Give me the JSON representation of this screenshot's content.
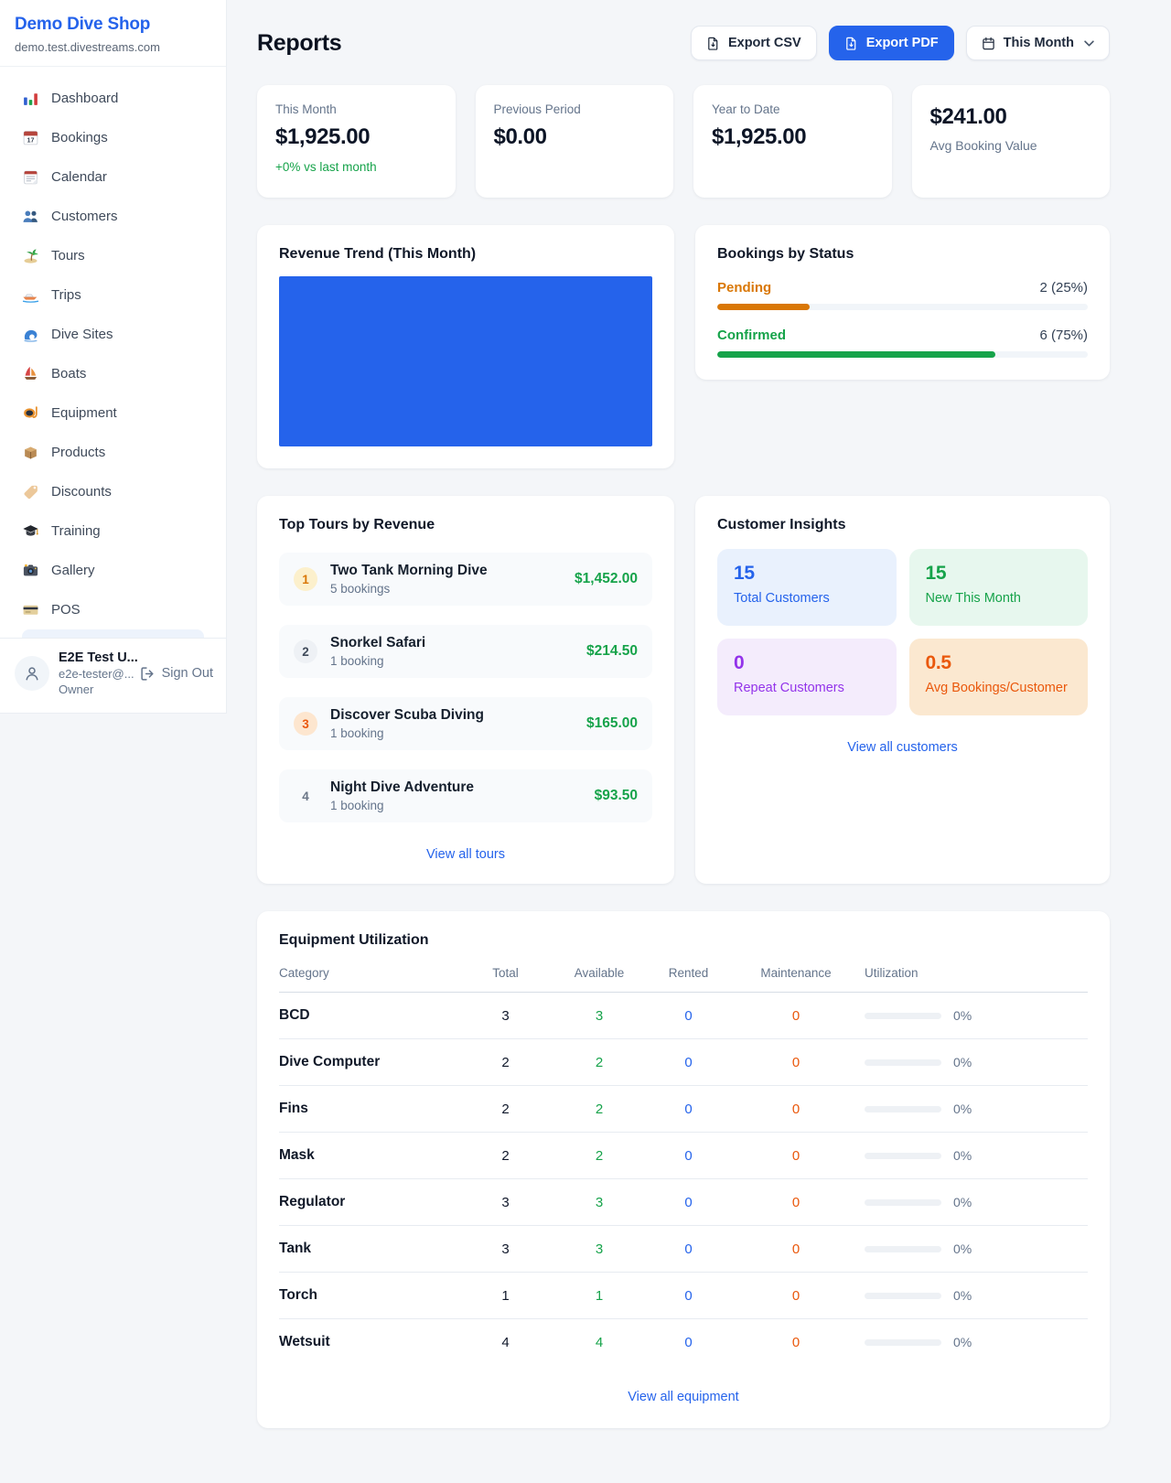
{
  "colors": {
    "accent_blue": "#2563eb",
    "green": "#16a34a",
    "pending_orange": "#d97706",
    "maintenance_orange": "#ea580c",
    "purple": "#9333ea",
    "page_background": "#f4f6f9"
  },
  "sidebar": {
    "shop_name": "Demo Dive Shop",
    "shop_domain": "demo.test.divestreams.com",
    "items": [
      {
        "icon": "bar-chart",
        "label": "Dashboard"
      },
      {
        "icon": "calendar-date",
        "label": "Bookings"
      },
      {
        "icon": "tear-off-calendar",
        "label": "Calendar"
      },
      {
        "icon": "people",
        "label": "Customers"
      },
      {
        "icon": "desert-island",
        "label": "Tours"
      },
      {
        "icon": "speedboat",
        "label": "Trips"
      },
      {
        "icon": "wave",
        "label": "Dive Sites"
      },
      {
        "icon": "sailboat",
        "label": "Boats"
      },
      {
        "icon": "diving-mask",
        "label": "Equipment"
      },
      {
        "icon": "package",
        "label": "Products"
      },
      {
        "icon": "tag",
        "label": "Discounts"
      },
      {
        "icon": "graduation-cap",
        "label": "Training"
      },
      {
        "icon": "camera-flash",
        "label": "Gallery"
      },
      {
        "icon": "credit-card",
        "label": "POS"
      }
    ],
    "user": {
      "name": "E2E Test U...",
      "email": "e2e-tester@...",
      "role": "Owner",
      "sign_out_label": "Sign Out"
    }
  },
  "header": {
    "title": "Reports",
    "export_csv_label": "Export CSV",
    "export_pdf_label": "Export PDF",
    "period_label": "This Month"
  },
  "stats": {
    "this_month": {
      "label": "This Month",
      "value": "$1,925.00",
      "delta": "+0% vs last month"
    },
    "previous_period": {
      "label": "Previous Period",
      "value": "$0.00"
    },
    "year_to_date": {
      "label": "Year to Date",
      "value": "$1,925.00"
    },
    "avg_booking": {
      "value": "$241.00",
      "label": "Avg Booking Value"
    }
  },
  "revenue_trend": {
    "title": "Revenue Trend (This Month)"
  },
  "bookings_by_status": {
    "title": "Bookings by Status",
    "rows": [
      {
        "label": "Pending",
        "count_text": "2 (25%)",
        "pct": 25
      },
      {
        "label": "Confirmed",
        "count_text": "6 (75%)",
        "pct": 75
      }
    ]
  },
  "top_tours": {
    "title": "Top Tours by Revenue",
    "rows": [
      {
        "rank": "1",
        "name": "Two Tank Morning Dive",
        "bookings": "5 bookings",
        "amount": "$1,452.00"
      },
      {
        "rank": "2",
        "name": "Snorkel Safari",
        "bookings": "1 booking",
        "amount": "$214.50"
      },
      {
        "rank": "3",
        "name": "Discover Scuba Diving",
        "bookings": "1 booking",
        "amount": "$165.00"
      },
      {
        "rank": "4",
        "name": "Night Dive Adventure",
        "bookings": "1 booking",
        "amount": "$93.50"
      }
    ],
    "view_all": "View all tours"
  },
  "customer_insights": {
    "title": "Customer Insights",
    "tiles": [
      {
        "value": "15",
        "label": "Total Customers",
        "theme": "blue"
      },
      {
        "value": "15",
        "label": "New This Month",
        "theme": "green"
      },
      {
        "value": "0",
        "label": "Repeat Customers",
        "theme": "purple"
      },
      {
        "value": "0.5",
        "label": "Avg Bookings/Customer",
        "theme": "orange"
      }
    ],
    "view_all": "View all customers"
  },
  "equipment": {
    "title": "Equipment Utilization",
    "columns": [
      "Category",
      "Total",
      "Available",
      "Rented",
      "Maintenance",
      "Utilization"
    ],
    "rows": [
      {
        "category": "BCD",
        "total": "3",
        "available": "3",
        "rented": "0",
        "maintenance": "0",
        "utilization": "0%",
        "utilization_pct": 0
      },
      {
        "category": "Dive Computer",
        "total": "2",
        "available": "2",
        "rented": "0",
        "maintenance": "0",
        "utilization": "0%",
        "utilization_pct": 0
      },
      {
        "category": "Fins",
        "total": "2",
        "available": "2",
        "rented": "0",
        "maintenance": "0",
        "utilization": "0%",
        "utilization_pct": 0
      },
      {
        "category": "Mask",
        "total": "2",
        "available": "2",
        "rented": "0",
        "maintenance": "0",
        "utilization": "0%",
        "utilization_pct": 0
      },
      {
        "category": "Regulator",
        "total": "3",
        "available": "3",
        "rented": "0",
        "maintenance": "0",
        "utilization": "0%",
        "utilization_pct": 0
      },
      {
        "category": "Tank",
        "total": "3",
        "available": "3",
        "rented": "0",
        "maintenance": "0",
        "utilization": "0%",
        "utilization_pct": 0
      },
      {
        "category": "Torch",
        "total": "1",
        "available": "1",
        "rented": "0",
        "maintenance": "0",
        "utilization": "0%",
        "utilization_pct": 0
      },
      {
        "category": "Wetsuit",
        "total": "4",
        "available": "4",
        "rented": "0",
        "maintenance": "0",
        "utilization": "0%",
        "utilization_pct": 0
      }
    ],
    "view_all": "View all equipment"
  }
}
